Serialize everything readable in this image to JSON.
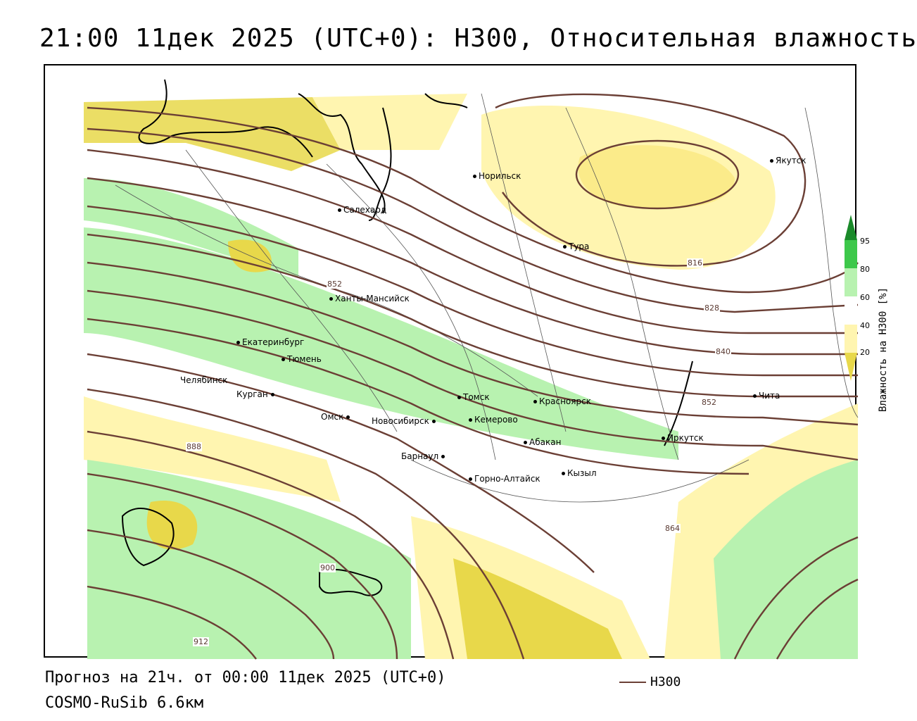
{
  "title": "21:00 11дек 2025 (UTC+0): H300, Относительная влажность",
  "footer": {
    "forecast": "Прогноз на 21ч. от 00:00 11дек 2025 (UTC+0)",
    "model": "COSMO-RuSib 6.6км",
    "line_legend": "H300"
  },
  "legend": {
    "title": "Влажность на H300 [%]",
    "ticks": [
      "95",
      "80",
      "60",
      "40",
      "20"
    ],
    "colors": [
      "#1a8a2a",
      "#3dc84a",
      "#b8f2b0",
      "#ffffff",
      "#fff5b0",
      "#e8d84a"
    ]
  },
  "colors": {
    "isoline": "#6b3f35",
    "coast": "#000000",
    "border": "#555555"
  },
  "isolines": [
    "816",
    "828",
    "840",
    "852",
    "852",
    "864",
    "888",
    "900",
    "912"
  ],
  "cities": [
    "Якутск",
    "Норильск",
    "Салехард",
    "Тура",
    "Ханты-Мансийск",
    "Екатеринбург",
    "Тюмень",
    "Челябинск",
    "Курган",
    "Томск",
    "Красноярск",
    "Омск",
    "Новосибирск",
    "Кемерово",
    "Абакан",
    "Иркутск",
    "Чита",
    "Барнаул",
    "Горно-Алтайск",
    "Кызыл"
  ]
}
